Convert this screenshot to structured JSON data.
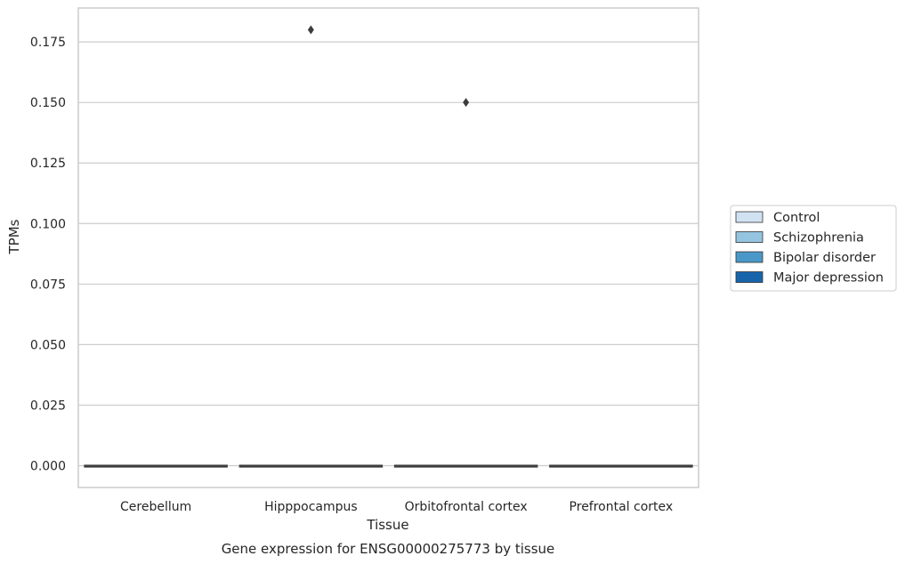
{
  "chart_data": {
    "type": "box",
    "title": "",
    "caption": "Gene expression for ENSG00000275773 by tissue",
    "xlabel": "Tissue",
    "ylabel": "TPMs",
    "categories": [
      "Cerebellum",
      "Hipppocampus",
      "Orbitofrontal cortex",
      "Prefrontal cortex"
    ],
    "ylim": [
      -0.009,
      0.189
    ],
    "yticks": [
      0.0,
      0.025,
      0.05,
      0.075,
      0.1,
      0.125,
      0.15,
      0.175
    ],
    "ytick_labels": [
      "0.000",
      "0.025",
      "0.050",
      "0.075",
      "0.100",
      "0.125",
      "0.150",
      "0.175"
    ],
    "grid": "horizontal",
    "legend_position": "right",
    "series": [
      {
        "name": "Control",
        "color": "#d0e1f2"
      },
      {
        "name": "Schizophrenia",
        "color": "#94c4df"
      },
      {
        "name": "Bipolar disorder",
        "color": "#4a98c9"
      },
      {
        "name": "Major depression",
        "color": "#1764ab"
      }
    ],
    "boxes": [
      {
        "category": "Cerebellum",
        "q1": 0,
        "median": 0,
        "q3": 0,
        "whisker_low": 0,
        "whisker_high": 0,
        "outliers": []
      },
      {
        "category": "Hipppocampus",
        "q1": 0,
        "median": 0,
        "q3": 0,
        "whisker_low": 0,
        "whisker_high": 0,
        "outliers": [
          0.18
        ]
      },
      {
        "category": "Orbitofrontal cortex",
        "q1": 0,
        "median": 0,
        "q3": 0,
        "whisker_low": 0,
        "whisker_high": 0,
        "outliers": [
          0.15
        ]
      },
      {
        "category": "Prefrontal cortex",
        "q1": 0,
        "median": 0,
        "q3": 0,
        "whisker_low": 0,
        "whisker_high": 0,
        "outliers": []
      }
    ]
  }
}
